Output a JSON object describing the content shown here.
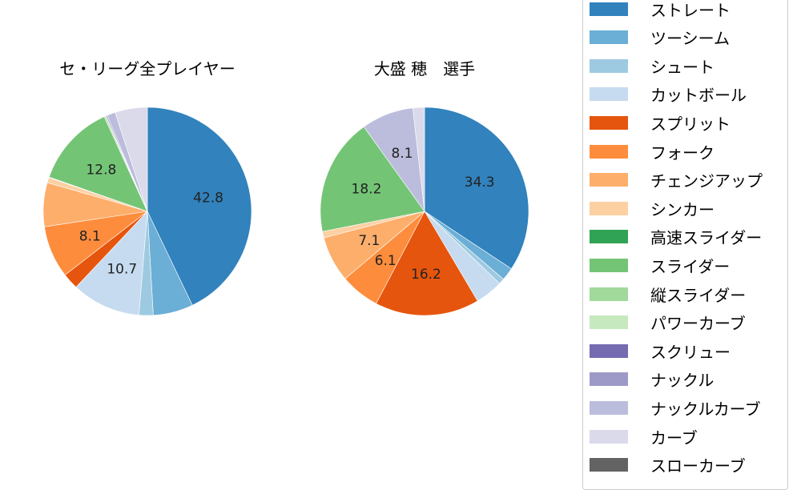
{
  "chart_data": [
    {
      "type": "pie",
      "title": "セ・リーグ全プレイヤー",
      "start_angle": 90,
      "direction": "clockwise",
      "label_threshold": 5,
      "categories": [
        "ストレート",
        "ツーシーム",
        "シュート",
        "カットボール",
        "スプリット",
        "フォーク",
        "チェンジアップ",
        "シンカー",
        "高速スライダー",
        "スライダー",
        "縦スライダー",
        "パワーカーブ",
        "スクリュー",
        "ナックル",
        "ナックルカーブ",
        "カーブ",
        "スローカーブ"
      ],
      "values": [
        42.8,
        6.2,
        2.2,
        10.7,
        2.5,
        8.1,
        6.8,
        0.8,
        0.1,
        12.8,
        0.2,
        0.0,
        0.1,
        0.2,
        1.3,
        5.0,
        0.0
      ],
      "labels_shown": {
        "ストレート": "42.8",
        "カットボール": "10.7",
        "フォーク": "8.1",
        "スライダー": "12.8"
      }
    },
    {
      "type": "pie",
      "title": "大盛 穂　選手",
      "start_angle": 90,
      "direction": "clockwise",
      "label_threshold": 5,
      "categories": [
        "ストレート",
        "ツーシーム",
        "シュート",
        "カットボール",
        "スプリット",
        "フォーク",
        "チェンジアップ",
        "シンカー",
        "高速スライダー",
        "スライダー",
        "縦スライダー",
        "パワーカーブ",
        "スクリュー",
        "ナックル",
        "ナックルカーブ",
        "カーブ",
        "スローカーブ"
      ],
      "values": [
        34.3,
        2.0,
        0.9,
        4.3,
        16.2,
        6.1,
        7.1,
        1.0,
        0.0,
        18.2,
        0.0,
        0.0,
        0.0,
        0.0,
        8.1,
        1.8,
        0.0
      ],
      "labels_shown": {
        "ストレート": "34.3",
        "スプリット": "16.2",
        "フォーク": "6.1",
        "チェンジアップ": "7.1",
        "スライダー": "18.2",
        "ナックルカーブ": "8.1"
      }
    }
  ],
  "charts": {
    "left": {
      "title": "セ・リーグ全プレイヤー"
    },
    "right": {
      "title": "大盛 穂　選手"
    }
  },
  "legend": {
    "items": [
      {
        "label": "ストレート",
        "color": "#3182bd"
      },
      {
        "label": "ツーシーム",
        "color": "#6baed6"
      },
      {
        "label": "シュート",
        "color": "#9ecae1"
      },
      {
        "label": "カットボール",
        "color": "#c6dbef"
      },
      {
        "label": "スプリット",
        "color": "#e6550d"
      },
      {
        "label": "フォーク",
        "color": "#fd8d3c"
      },
      {
        "label": "チェンジアップ",
        "color": "#fdae6b"
      },
      {
        "label": "シンカー",
        "color": "#fdd0a2"
      },
      {
        "label": "高速スライダー",
        "color": "#31a354"
      },
      {
        "label": "スライダー",
        "color": "#74c476"
      },
      {
        "label": "縦スライダー",
        "color": "#a1d99b"
      },
      {
        "label": "パワーカーブ",
        "color": "#c7e9c0"
      },
      {
        "label": "スクリュー",
        "color": "#756bb1"
      },
      {
        "label": "ナックル",
        "color": "#9e9ac8"
      },
      {
        "label": "ナックルカーブ",
        "color": "#bcbddc"
      },
      {
        "label": "カーブ",
        "color": "#dadaeb"
      },
      {
        "label": "スローカーブ",
        "color": "#636363"
      }
    ]
  }
}
